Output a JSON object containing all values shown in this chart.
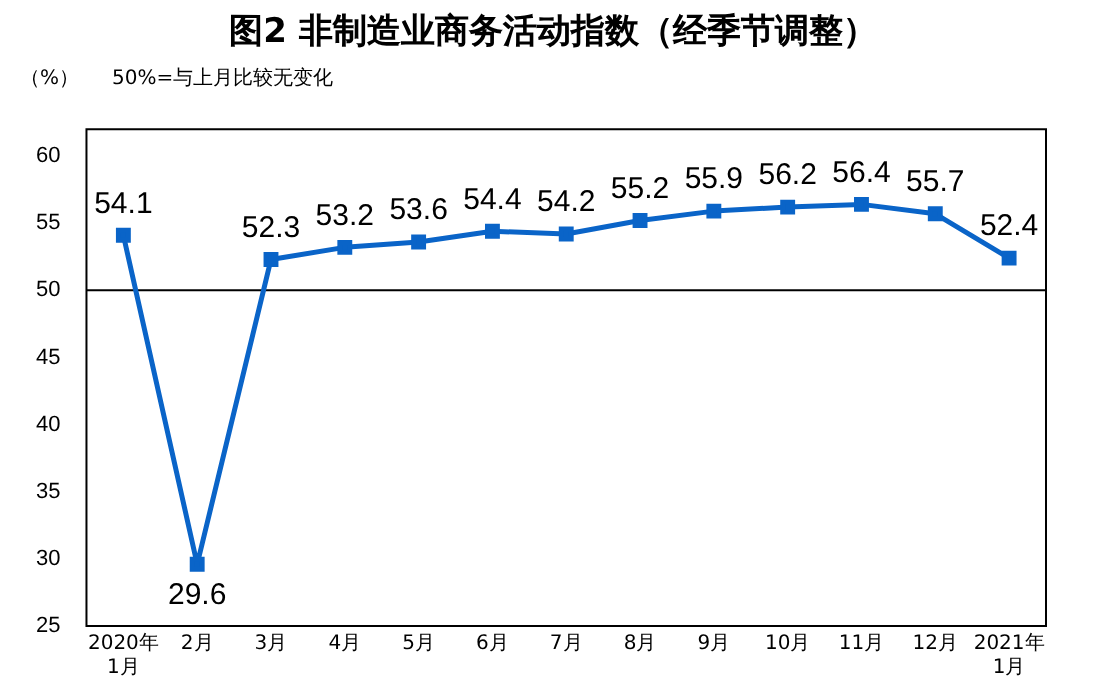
{
  "chart_data": {
    "type": "line",
    "title": "图2  非制造业商务活动指数（经季节调整）",
    "ylabel": "（%）",
    "annotations": [
      "50%=与上月比较无变化"
    ],
    "categories": [
      "2020年\n1月",
      "2月",
      "3月",
      "4月",
      "5月",
      "6月",
      "7月",
      "8月",
      "9月",
      "10月",
      "11月",
      "12月",
      "2021年\n1月"
    ],
    "series": [
      {
        "color": "#0a64c8",
        "values": [
          54.1,
          29.6,
          52.3,
          53.2,
          53.6,
          54.4,
          54.2,
          55.2,
          55.9,
          56.2,
          56.4,
          55.7,
          52.4
        ]
      }
    ],
    "ylim": [
      25,
      62
    ],
    "yticks": [
      25,
      30,
      35,
      40,
      45,
      50,
      55,
      60
    ],
    "ref_lines": [
      {
        "axis": "y",
        "value": 50,
        "color": "#000000"
      }
    ],
    "data_labels": true,
    "marker": "square",
    "line_style": "solid",
    "grid": false,
    "legend": false
  }
}
